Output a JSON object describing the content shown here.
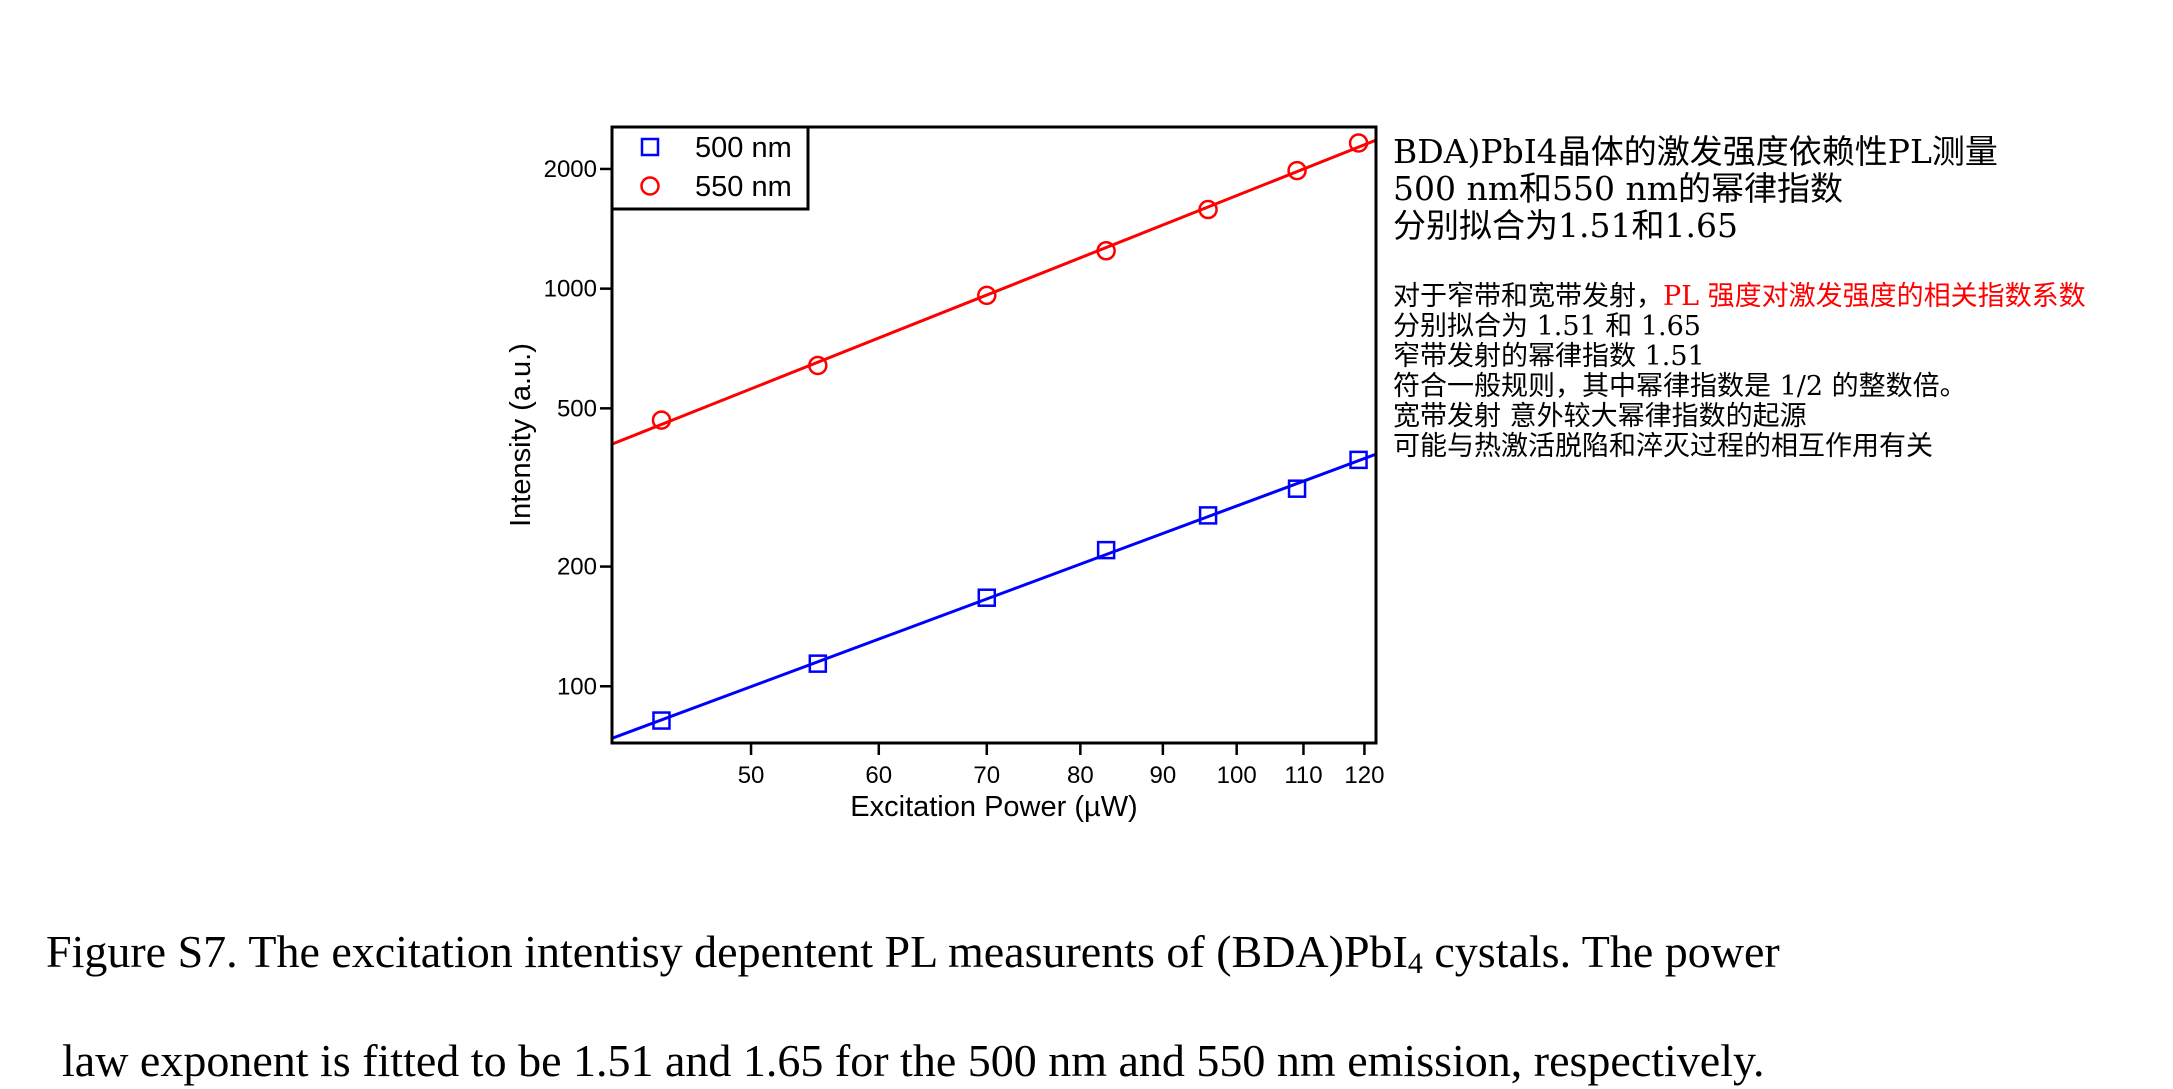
{
  "chart_data": {
    "type": "scatter",
    "xlabel": "Excitation Power (µW)",
    "ylabel": "Intensity (a.u.)",
    "x_scale": "log",
    "y_scale": "log",
    "xlim": [
      41,
      122
    ],
    "ylim": [
      72,
      2550
    ],
    "xticks": [
      50,
      60,
      70,
      80,
      90,
      100,
      110,
      120
    ],
    "yticks": [
      100,
      200,
      500,
      1000,
      2000
    ],
    "legend_position": "top-left",
    "grid": false,
    "series": [
      {
        "name": "500 nm",
        "marker": "square",
        "color": "#0000ff",
        "x": [
          44,
          55,
          70,
          83,
          96,
          109,
          119
        ],
        "y": [
          82,
          114,
          167,
          220,
          269,
          314,
          371
        ],
        "fit_exponent": 1.51
      },
      {
        "name": "550 nm",
        "marker": "circle",
        "color": "#ff0000",
        "x": [
          44,
          55,
          70,
          83,
          96,
          109,
          119
        ],
        "y": [
          467,
          641,
          962,
          1245,
          1581,
          1981,
          2324
        ],
        "fit_exponent": 1.65
      }
    ]
  },
  "annotation": {
    "main_lines": [
      "BDA)PbI4晶体的激发强度依赖性PL测量",
      "500 nm和550 nm的幂律指数",
      "分别拟合为1.51和1.65"
    ],
    "detail_line1_black": "对于窄带和宽带发射，",
    "detail_line1_red": "PL 强度对激发强度的相关指数系数",
    "detail_lines": [
      "分别拟合为 1.51 和 1.65",
      "窄带发射的幂律指数 1.51",
      "符合一般规则，其中幂律指数是 1/2 的整数倍。",
      "宽带发射 意外较大幂律指数的起源",
      "可能与热激活脱陷和淬灭过程的相互作用有关"
    ]
  },
  "caption": {
    "line1_before": "Figure S7. The excitation intentisy depentent PL measurents of (BDA)PbI",
    "line1_sub": "4",
    "line1_after": " cystals. The power",
    "line2": "law exponent is fitted to be 1.51 and 1.65 for the 500 nm and 550 nm emission, respectively."
  }
}
